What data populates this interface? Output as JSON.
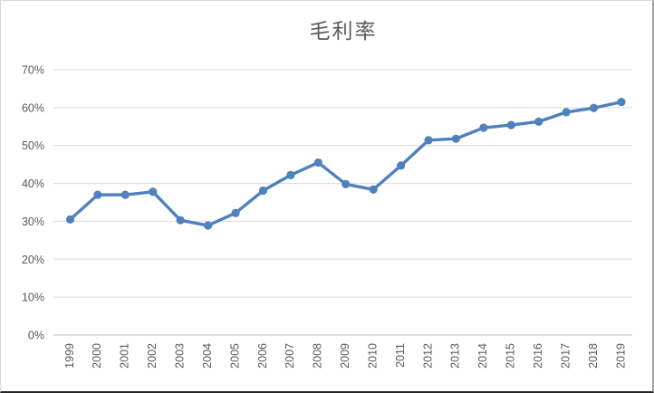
{
  "chart": {
    "title": "毛利率"
  },
  "chart_data": {
    "type": "line",
    "title": "毛利率",
    "categories": [
      "1999",
      "2000",
      "2001",
      "2002",
      "2003",
      "2004",
      "2005",
      "2006",
      "2007",
      "2008",
      "2009",
      "2010",
      "2011",
      "2012",
      "2013",
      "2014",
      "2015",
      "2016",
      "2017",
      "2018",
      "2019"
    ],
    "series": [
      {
        "name": "毛利率",
        "values": [
          30.5,
          37.0,
          37.0,
          37.8,
          30.3,
          28.9,
          32.2,
          38.1,
          42.2,
          45.5,
          39.8,
          38.4,
          44.7,
          51.4,
          51.8,
          54.7,
          55.4,
          56.3,
          58.8,
          59.9,
          61.5
        ]
      }
    ],
    "xlabel": "",
    "ylabel": "",
    "ylim": [
      0,
      70
    ],
    "y_tick_step": 10,
    "y_tick_labels": [
      "0%",
      "10%",
      "20%",
      "30%",
      "40%",
      "50%",
      "60%",
      "70%"
    ],
    "x_tick_rotation": -90,
    "grid": "horizontal",
    "legend_position": "none",
    "colors": {
      "line": "#4F81BD",
      "marker": "#4F81BD",
      "gridline": "#d9d9d9",
      "axis_line": "#bfbfbf",
      "tick_text": "#595959",
      "title_text": "#595959",
      "background": "#ffffff"
    }
  }
}
